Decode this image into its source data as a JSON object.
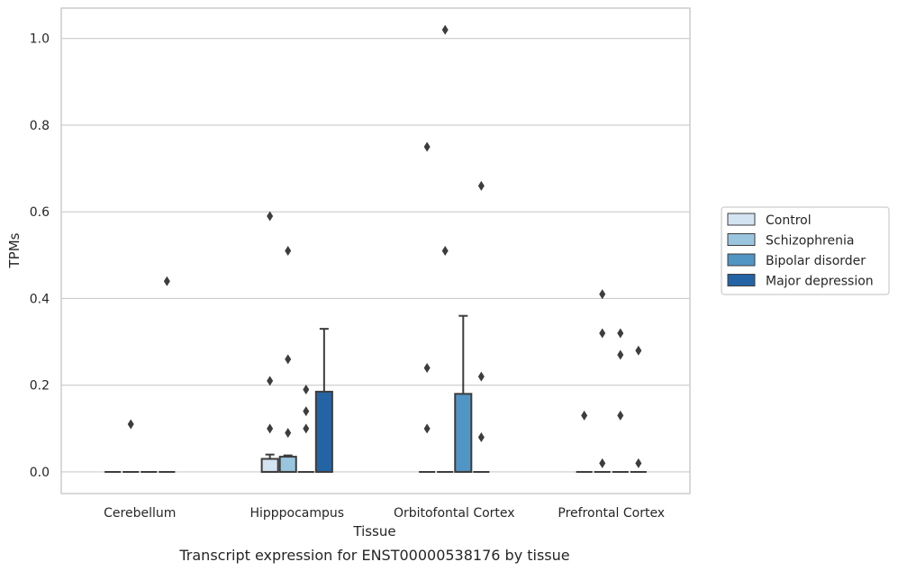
{
  "chart_data": {
    "type": "box",
    "title": "Transcript expression for ENST00000538176 by tissue",
    "xlabel": "Tissue",
    "ylabel": "TPMs",
    "ylim": [
      -0.05,
      1.07
    ],
    "yticks": [
      0.0,
      0.2,
      0.4,
      0.6,
      0.8,
      1.0
    ],
    "ytick_labels": [
      "0.0",
      "0.2",
      "0.4",
      "0.6",
      "0.8",
      "1.0"
    ],
    "grid": true,
    "legend_position": "right",
    "categories": [
      "Cerebellum",
      "Hipppocampus",
      "Orbitofontal Cortex",
      "Prefrontal Cortex"
    ],
    "series": [
      {
        "name": "Control",
        "color": "#d4e3f2",
        "boxes": [
          {
            "q1": 0,
            "median": 0,
            "q3": 0,
            "whisker_low": 0,
            "whisker_high": 0,
            "outliers": []
          },
          {
            "q1": 0,
            "median": 0,
            "q3": 0.03,
            "whisker_low": 0,
            "whisker_high": 0.04,
            "outliers": [
              0.1,
              0.21,
              0.59
            ]
          },
          {
            "q1": 0,
            "median": 0,
            "q3": 0,
            "whisker_low": 0,
            "whisker_high": 0,
            "outliers": [
              0.1,
              0.24,
              0.75
            ]
          },
          {
            "q1": 0,
            "median": 0,
            "q3": 0,
            "whisker_low": 0,
            "whisker_high": 0,
            "outliers": [
              0.13
            ]
          }
        ]
      },
      {
        "name": "Schizophrenia",
        "color": "#9ac5df",
        "boxes": [
          {
            "q1": 0,
            "median": 0,
            "q3": 0,
            "whisker_low": 0,
            "whisker_high": 0,
            "outliers": [
              0.11
            ]
          },
          {
            "q1": 0,
            "median": 0,
            "q3": 0.035,
            "whisker_low": 0,
            "whisker_high": 0.038,
            "outliers": [
              0.09,
              0.26,
              0.51
            ]
          },
          {
            "q1": 0,
            "median": 0,
            "q3": 0,
            "whisker_low": 0,
            "whisker_high": 0,
            "outliers": [
              0.51,
              1.02
            ]
          },
          {
            "q1": 0,
            "median": 0,
            "q3": 0,
            "whisker_low": 0,
            "whisker_high": 0,
            "outliers": [
              0.02,
              0.32,
              0.41
            ]
          }
        ]
      },
      {
        "name": "Bipolar disorder",
        "color": "#5195c5",
        "boxes": [
          {
            "q1": 0,
            "median": 0,
            "q3": 0,
            "whisker_low": 0,
            "whisker_high": 0,
            "outliers": []
          },
          {
            "q1": 0,
            "median": 0,
            "q3": 0,
            "whisker_low": 0,
            "whisker_high": 0,
            "outliers": [
              0.1,
              0.14,
              0.19
            ]
          },
          {
            "q1": 0,
            "median": 0,
            "q3": 0.18,
            "whisker_low": 0,
            "whisker_high": 0.36,
            "outliers": []
          },
          {
            "q1": 0,
            "median": 0,
            "q3": 0,
            "whisker_low": 0,
            "whisker_high": 0,
            "outliers": [
              0.13,
              0.27,
              0.32
            ]
          }
        ]
      },
      {
        "name": "Major depression",
        "color": "#2464a5",
        "boxes": [
          {
            "q1": 0,
            "median": 0,
            "q3": 0,
            "whisker_low": 0,
            "whisker_high": 0,
            "outliers": [
              0.44
            ]
          },
          {
            "q1": 0,
            "median": 0,
            "q3": 0.185,
            "whisker_low": 0,
            "whisker_high": 0.33,
            "outliers": []
          },
          {
            "q1": 0,
            "median": 0,
            "q3": 0,
            "whisker_low": 0,
            "whisker_high": 0,
            "outliers": [
              0.08,
              0.22,
              0.66
            ]
          },
          {
            "q1": 0,
            "median": 0,
            "q3": 0,
            "whisker_low": 0,
            "whisker_high": 0,
            "outliers": [
              0.02,
              0.28
            ]
          }
        ]
      }
    ]
  }
}
